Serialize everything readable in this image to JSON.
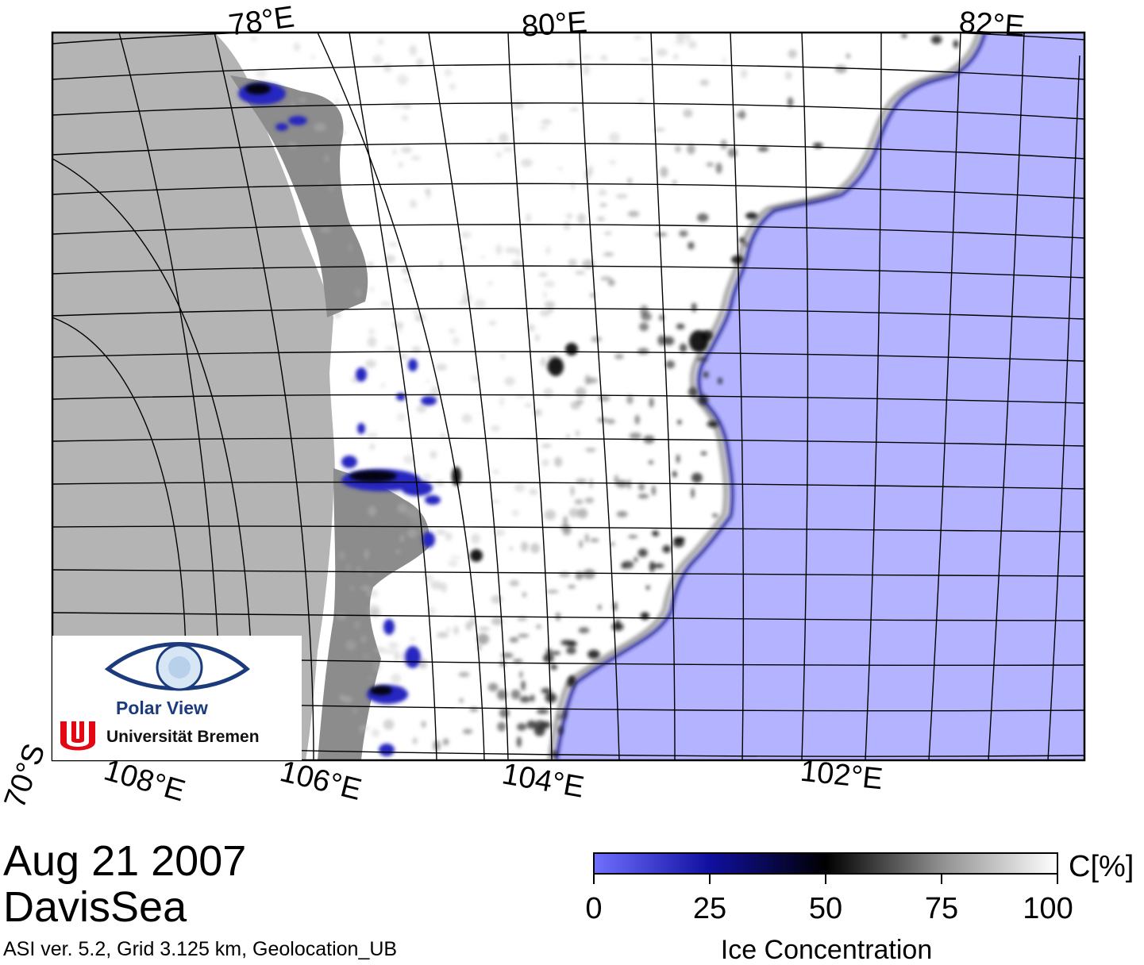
{
  "map": {
    "date": "Aug 21 2007",
    "region": "DavisSea",
    "info": "ASI ver. 5.2,  Grid 3.125 km, Geolocation_UB",
    "top_labels": [
      "78°E",
      "80°E",
      "82°E"
    ],
    "bottom_labels": [
      "70°S",
      "108°E",
      "106°E",
      "104°E",
      "102°E"
    ],
    "colors": {
      "open_water": "#b3b3ff",
      "land": "#b4b4b4",
      "ice_shelf": "#8c8c8c",
      "sea_ice": "#ffffff",
      "grid": "#000000"
    }
  },
  "logo": {
    "line1": "Polar View",
    "line2": "Universität Bremen"
  },
  "colorbar": {
    "unit": "C[%]",
    "title": "Ice Concentration",
    "ticks": [
      "0",
      "25",
      "50",
      "75",
      "100"
    ],
    "range": [
      0,
      100
    ],
    "stops": [
      {
        "value": 0,
        "color": "#7070ff"
      },
      {
        "value": 25,
        "color": "#1010a0"
      },
      {
        "value": 50,
        "color": "#000000"
      },
      {
        "value": 75,
        "color": "#909090"
      },
      {
        "value": 100,
        "color": "#ffffff"
      }
    ]
  }
}
